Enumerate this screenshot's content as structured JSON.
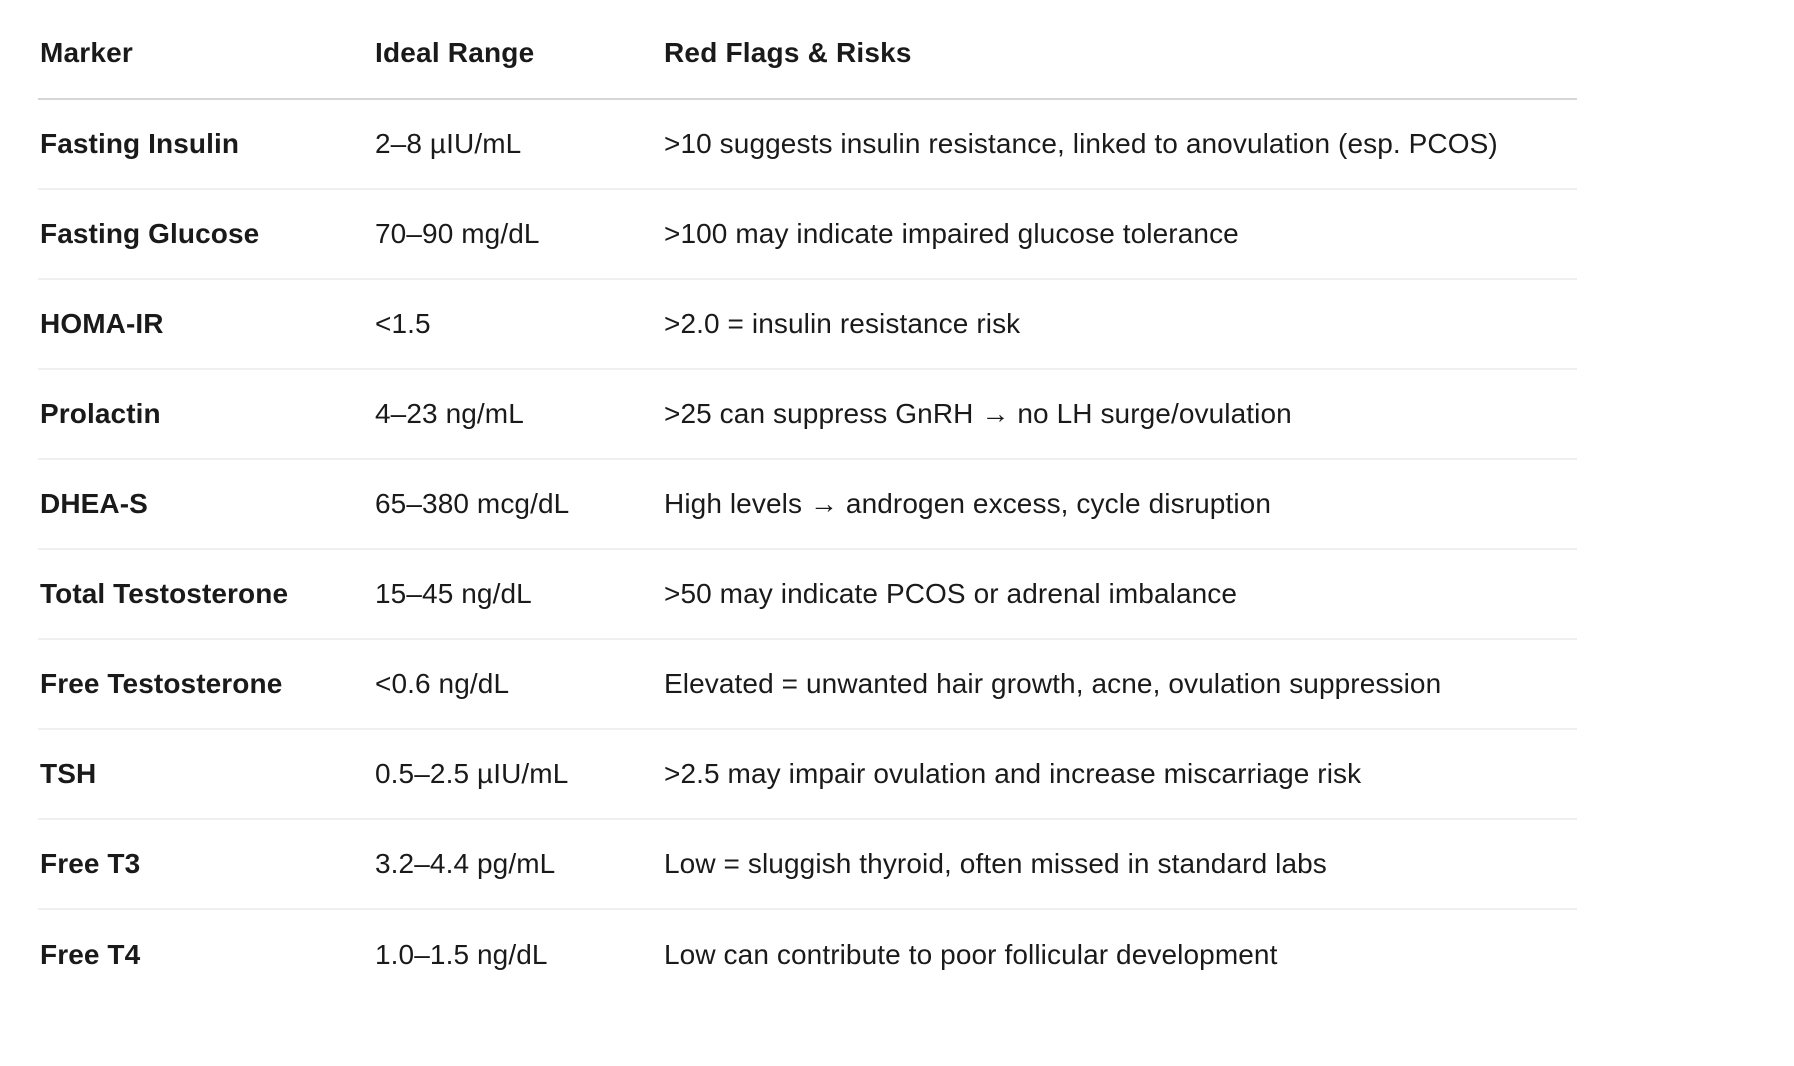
{
  "table": {
    "columns": [
      {
        "key": "marker",
        "label": "Marker"
      },
      {
        "key": "range",
        "label": "Ideal Range"
      },
      {
        "key": "risk",
        "label": "Red Flags & Risks"
      }
    ],
    "rows": [
      {
        "marker": "Fasting Insulin",
        "range": "2–8 µIU/mL",
        "risk": ">10 suggests insulin resistance, linked to anovulation (esp. PCOS)"
      },
      {
        "marker": "Fasting Glucose",
        "range": "70–90 mg/dL",
        "risk": ">100 may indicate impaired glucose tolerance"
      },
      {
        "marker": "HOMA-IR",
        "range": "<1.5",
        "risk": ">2.0 = insulin resistance risk"
      },
      {
        "marker": "Prolactin",
        "range": "4–23 ng/mL",
        "risk": ">25 can suppress GnRH → no LH surge/ovulation"
      },
      {
        "marker": "DHEA-S",
        "range": "65–380 mcg/dL",
        "risk": "High levels → androgen excess, cycle disruption"
      },
      {
        "marker": "Total Testosterone",
        "range": "15–45 ng/dL",
        "risk": ">50 may indicate PCOS or adrenal imbalance"
      },
      {
        "marker": "Free Testosterone",
        "range": "<0.6 ng/dL",
        "risk": "Elevated = unwanted hair growth, acne, ovulation suppression"
      },
      {
        "marker": "TSH",
        "range": "0.5–2.5 µIU/mL",
        "risk": ">2.5 may impair ovulation and increase miscarriage risk"
      },
      {
        "marker": "Free T3",
        "range": "3.2–4.4 pg/mL",
        "risk": "Low = sluggish thyroid, often missed in standard labs"
      },
      {
        "marker": "Free T4",
        "range": "1.0–1.5 ng/dL",
        "risk": "Low can contribute to poor follicular development"
      }
    ],
    "colors": {
      "text": "#1a1a1a",
      "background": "#ffffff",
      "header_divider": "#d6d6d6",
      "row_divider": "#efefef"
    }
  }
}
